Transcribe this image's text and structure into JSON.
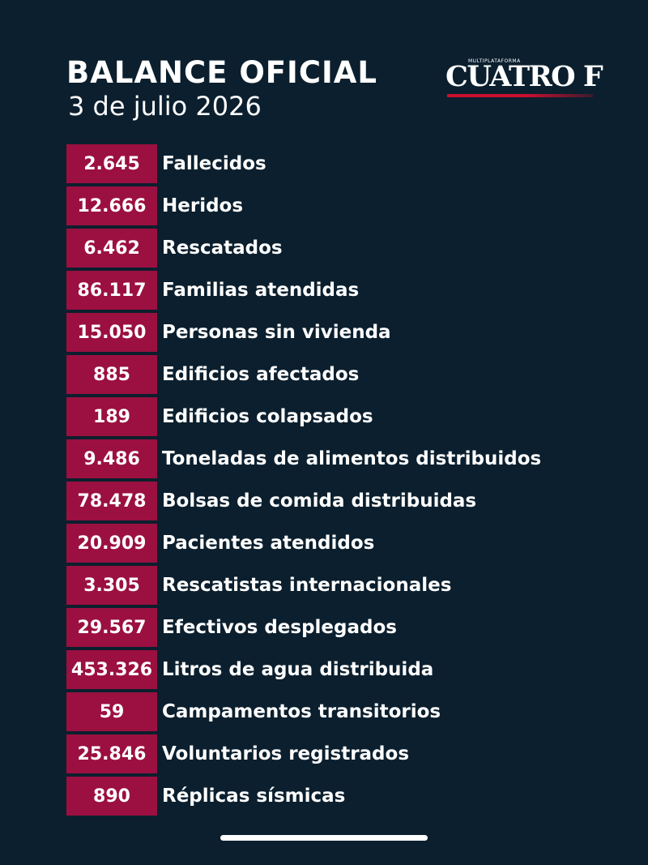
{
  "header": {
    "title": "BALANCE OFICIAL",
    "date": "3 de julio 2026"
  },
  "logo": {
    "kicker": "MULTIPLATAFORMA",
    "wordmark": "CUATRO F",
    "accent_color": "#c8102e"
  },
  "colors": {
    "background": "#0b1f2e",
    "value_box": "#9b1040"
  },
  "stats": [
    {
      "value": "2.645",
      "label": "Fallecidos"
    },
    {
      "value": "12.666",
      "label": "Heridos"
    },
    {
      "value": "6.462",
      "label": "Rescatados"
    },
    {
      "value": "86.117",
      "label": "Familias atendidas"
    },
    {
      "value": "15.050",
      "label": "Personas sin vivienda"
    },
    {
      "value": "885",
      "label": "Edificios afectados"
    },
    {
      "value": "189",
      "label": "Edificios colapsados"
    },
    {
      "value": "9.486",
      "label": "Toneladas de alimentos distribuidos"
    },
    {
      "value": "78.478",
      "label": "Bolsas de comida distribuidas"
    },
    {
      "value": "20.909",
      "label": "Pacientes atendidos"
    },
    {
      "value": "3.305",
      "label": "Rescatistas internacionales"
    },
    {
      "value": "29.567",
      "label": "Efectivos desplegados"
    },
    {
      "value": "453.326",
      "label": "Litros de agua distribuida"
    },
    {
      "value": "59",
      "label": "Campamentos transitorios"
    },
    {
      "value": "25.846",
      "label": "Voluntarios registrados"
    },
    {
      "value": "890",
      "label": "Réplicas sísmicas"
    }
  ]
}
